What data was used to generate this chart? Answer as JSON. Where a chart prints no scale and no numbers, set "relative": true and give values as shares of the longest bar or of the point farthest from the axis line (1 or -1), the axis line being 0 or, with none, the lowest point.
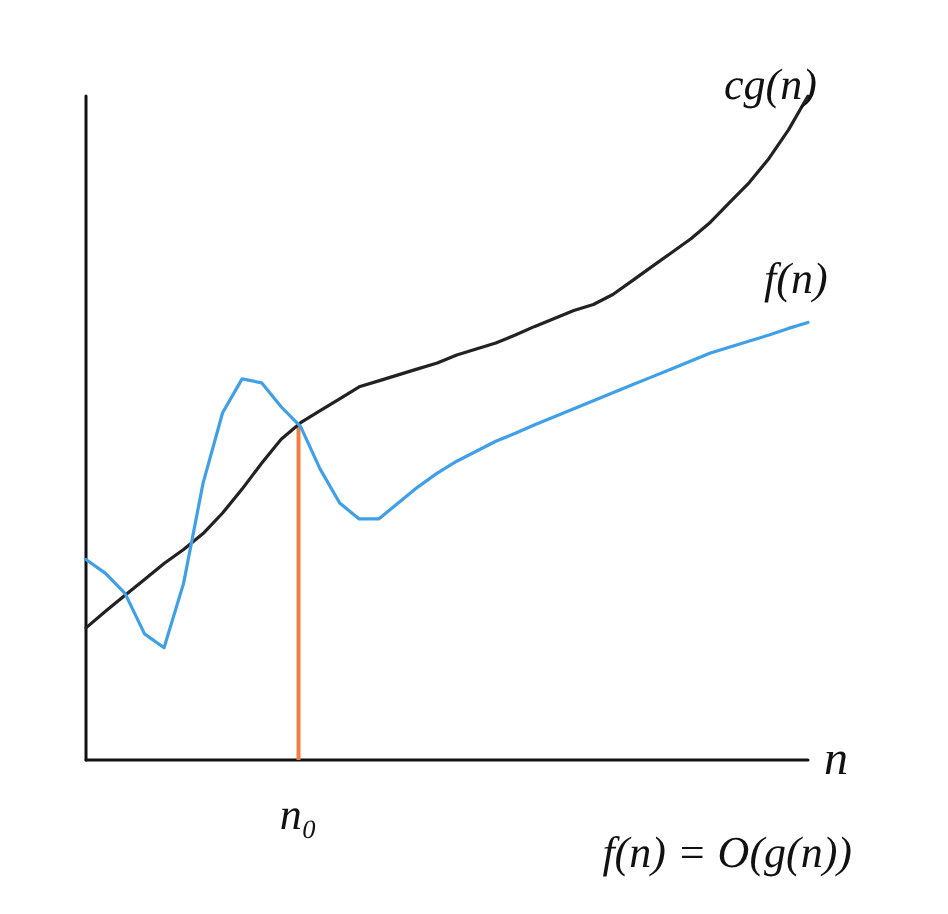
{
  "chart_data": {
    "type": "line",
    "relative": true,
    "xlabel": "n",
    "categories": [
      null,
      null,
      null,
      null,
      null,
      null,
      null,
      null,
      null,
      null,
      null,
      null,
      null,
      null,
      null,
      null,
      null,
      null,
      null,
      null,
      null,
      null,
      null,
      null,
      null,
      null,
      null,
      null,
      null,
      null,
      null,
      null,
      null,
      null,
      null,
      null,
      null,
      null
    ],
    "series": [
      {
        "name": "cg(n)",
        "color": "#222222",
        "values": [
          0.199,
          0.224,
          0.248,
          0.272,
          0.296,
          0.317,
          0.341,
          0.372,
          0.408,
          0.447,
          0.483,
          0.508,
          0.526,
          0.544,
          0.562,
          0.571,
          0.58,
          0.589,
          0.598,
          0.61,
          0.619,
          0.628,
          0.64,
          0.653,
          0.665,
          0.677,
          0.686,
          0.701,
          0.722,
          0.743,
          0.764,
          0.785,
          0.81,
          0.84,
          0.87,
          0.906,
          0.949,
          1
        ]
      },
      {
        "name": "f(n)",
        "color": "#3fa0e8",
        "values": [
          0.302,
          0.281,
          0.251,
          0.19,
          0.169,
          0.266,
          0.417,
          0.523,
          0.574,
          0.568,
          0.532,
          0.502,
          0.438,
          0.387,
          0.363,
          0.363,
          0.387,
          0.411,
          0.432,
          0.45,
          0.465,
          0.48,
          0.492,
          0.505,
          0.517,
          0.529,
          0.541,
          0.553,
          0.565,
          0.577,
          0.589,
          0.601,
          0.613,
          0.622,
          0.631,
          0.64,
          0.65,
          0.659
        ]
      }
    ],
    "annotations": [
      "n₀",
      "f(n) = O(g(n))"
    ],
    "legend": false,
    "grid": false,
    "marker": "none",
    "line_style": "solid"
  }
}
